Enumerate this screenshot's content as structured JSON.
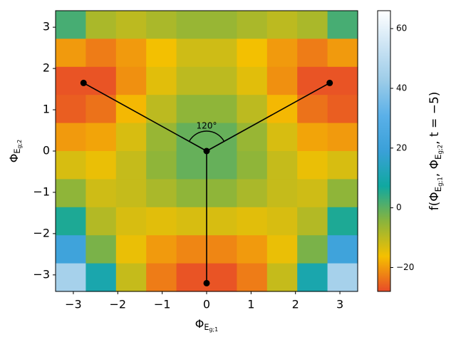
{
  "chart_data": {
    "type": "heatmap",
    "x": [
      -3.06,
      -2.38,
      -1.7,
      -1.02,
      -0.34,
      0.34,
      1.02,
      1.7,
      2.38,
      3.06
    ],
    "y": [
      3.06,
      2.38,
      1.7,
      1.02,
      0.34,
      -0.34,
      -1.02,
      -1.7,
      -2.38,
      -3.06
    ],
    "z": [
      [
        2,
        -8,
        -10,
        -8,
        -6,
        -6,
        -8,
        -10,
        -8,
        2
      ],
      [
        -20,
        -23,
        -20,
        -16,
        -12,
        -12,
        -16,
        -20,
        -23,
        -20
      ],
      [
        -27,
        -27,
        -21,
        -14,
        -10,
        -10,
        -14,
        -21,
        -27,
        -27
      ],
      [
        -26,
        -24,
        -17,
        -10,
        -5,
        -5,
        -10,
        -17,
        -24,
        -26
      ],
      [
        -20,
        -19,
        -13,
        -6,
        -1,
        -1,
        -6,
        -13,
        -19,
        -20
      ],
      [
        -13,
        -15,
        -11,
        -5,
        -1,
        -1,
        -5,
        -11,
        -15,
        -13
      ],
      [
        -5,
        -12,
        -11,
        -8,
        -5,
        -5,
        -8,
        -11,
        -12,
        -5
      ],
      [
        6,
        -9,
        -13,
        -14,
        -13,
        -13,
        -14,
        -13,
        -9,
        6
      ],
      [
        21,
        -3,
        -15,
        -20,
        -22,
        -22,
        -20,
        -15,
        -3,
        21
      ],
      [
        45,
        10,
        -11,
        -23,
        -27,
        -27,
        -23,
        -11,
        10,
        45
      ]
    ],
    "colormap": [
      "#e84a28",
      "#f5c000",
      "#8ab43c",
      "#10a8a0",
      "#3aa0d8",
      "#5ab0e8",
      "#9ccce8",
      "#cce4f4",
      "#ffffff"
    ],
    "clim": [
      -28,
      66
    ],
    "cticks": [
      {
        "value": -20,
        "label": "−20"
      },
      0,
      20,
      40,
      60
    ],
    "xlim": [
      -3.4,
      3.4
    ],
    "ylim": [
      -3.4,
      3.4
    ],
    "xticks": [
      {
        "value": -3,
        "label": "−3"
      },
      {
        "value": -2,
        "label": "−2"
      },
      {
        "value": -1,
        "label": "−1"
      },
      0,
      1,
      2,
      3
    ],
    "yticks": [
      {
        "value": -3,
        "label": "−3"
      },
      {
        "value": -2,
        "label": "−2"
      },
      {
        "value": -1,
        "label": "−1"
      },
      0,
      1,
      2,
      3
    ],
    "xlabel": [
      {
        "text": "Φ"
      },
      {
        "sub": "E"
      },
      {
        "subsub": "g;1"
      }
    ],
    "ylabel": [
      {
        "text": "Φ"
      },
      {
        "sub": "E"
      },
      {
        "subsub": "g;2"
      }
    ],
    "colorbar_label": [
      {
        "text": "f(Φ"
      },
      {
        "sub": "E"
      },
      {
        "subsub": "g;1"
      },
      {
        "text": ", Φ"
      },
      {
        "sub": "E"
      },
      {
        "subsub": "g;2"
      },
      {
        "text": ", t = −5)"
      }
    ],
    "points": {
      "x": [
        0,
        -2.77,
        2.77,
        0
      ],
      "y": [
        0,
        1.65,
        1.65,
        -3.2
      ],
      "color": "#000000"
    },
    "annotation": "120°"
  }
}
